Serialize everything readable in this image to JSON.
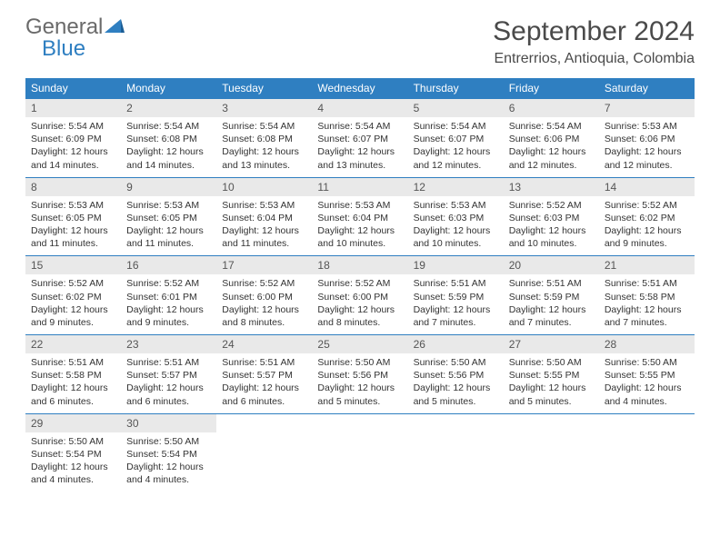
{
  "logo": {
    "general": "General",
    "blue": "Blue"
  },
  "title": "September 2024",
  "location": "Entrerrios, Antioquia, Colombia",
  "colors": {
    "header_bg": "#2f7fc1",
    "header_text": "#ffffff",
    "daynum_bg": "#e9e9e9",
    "border": "#2f7fc1",
    "logo_gray": "#6a6a6a",
    "logo_blue": "#2f7fc1"
  },
  "day_headers": [
    "Sunday",
    "Monday",
    "Tuesday",
    "Wednesday",
    "Thursday",
    "Friday",
    "Saturday"
  ],
  "weeks": [
    [
      {
        "n": "1",
        "sr": "Sunrise: 5:54 AM",
        "ss": "Sunset: 6:09 PM",
        "dl1": "Daylight: 12 hours",
        "dl2": "and 14 minutes."
      },
      {
        "n": "2",
        "sr": "Sunrise: 5:54 AM",
        "ss": "Sunset: 6:08 PM",
        "dl1": "Daylight: 12 hours",
        "dl2": "and 14 minutes."
      },
      {
        "n": "3",
        "sr": "Sunrise: 5:54 AM",
        "ss": "Sunset: 6:08 PM",
        "dl1": "Daylight: 12 hours",
        "dl2": "and 13 minutes."
      },
      {
        "n": "4",
        "sr": "Sunrise: 5:54 AM",
        "ss": "Sunset: 6:07 PM",
        "dl1": "Daylight: 12 hours",
        "dl2": "and 13 minutes."
      },
      {
        "n": "5",
        "sr": "Sunrise: 5:54 AM",
        "ss": "Sunset: 6:07 PM",
        "dl1": "Daylight: 12 hours",
        "dl2": "and 12 minutes."
      },
      {
        "n": "6",
        "sr": "Sunrise: 5:54 AM",
        "ss": "Sunset: 6:06 PM",
        "dl1": "Daylight: 12 hours",
        "dl2": "and 12 minutes."
      },
      {
        "n": "7",
        "sr": "Sunrise: 5:53 AM",
        "ss": "Sunset: 6:06 PM",
        "dl1": "Daylight: 12 hours",
        "dl2": "and 12 minutes."
      }
    ],
    [
      {
        "n": "8",
        "sr": "Sunrise: 5:53 AM",
        "ss": "Sunset: 6:05 PM",
        "dl1": "Daylight: 12 hours",
        "dl2": "and 11 minutes."
      },
      {
        "n": "9",
        "sr": "Sunrise: 5:53 AM",
        "ss": "Sunset: 6:05 PM",
        "dl1": "Daylight: 12 hours",
        "dl2": "and 11 minutes."
      },
      {
        "n": "10",
        "sr": "Sunrise: 5:53 AM",
        "ss": "Sunset: 6:04 PM",
        "dl1": "Daylight: 12 hours",
        "dl2": "and 11 minutes."
      },
      {
        "n": "11",
        "sr": "Sunrise: 5:53 AM",
        "ss": "Sunset: 6:04 PM",
        "dl1": "Daylight: 12 hours",
        "dl2": "and 10 minutes."
      },
      {
        "n": "12",
        "sr": "Sunrise: 5:53 AM",
        "ss": "Sunset: 6:03 PM",
        "dl1": "Daylight: 12 hours",
        "dl2": "and 10 minutes."
      },
      {
        "n": "13",
        "sr": "Sunrise: 5:52 AM",
        "ss": "Sunset: 6:03 PM",
        "dl1": "Daylight: 12 hours",
        "dl2": "and 10 minutes."
      },
      {
        "n": "14",
        "sr": "Sunrise: 5:52 AM",
        "ss": "Sunset: 6:02 PM",
        "dl1": "Daylight: 12 hours",
        "dl2": "and 9 minutes."
      }
    ],
    [
      {
        "n": "15",
        "sr": "Sunrise: 5:52 AM",
        "ss": "Sunset: 6:02 PM",
        "dl1": "Daylight: 12 hours",
        "dl2": "and 9 minutes."
      },
      {
        "n": "16",
        "sr": "Sunrise: 5:52 AM",
        "ss": "Sunset: 6:01 PM",
        "dl1": "Daylight: 12 hours",
        "dl2": "and 9 minutes."
      },
      {
        "n": "17",
        "sr": "Sunrise: 5:52 AM",
        "ss": "Sunset: 6:00 PM",
        "dl1": "Daylight: 12 hours",
        "dl2": "and 8 minutes."
      },
      {
        "n": "18",
        "sr": "Sunrise: 5:52 AM",
        "ss": "Sunset: 6:00 PM",
        "dl1": "Daylight: 12 hours",
        "dl2": "and 8 minutes."
      },
      {
        "n": "19",
        "sr": "Sunrise: 5:51 AM",
        "ss": "Sunset: 5:59 PM",
        "dl1": "Daylight: 12 hours",
        "dl2": "and 7 minutes."
      },
      {
        "n": "20",
        "sr": "Sunrise: 5:51 AM",
        "ss": "Sunset: 5:59 PM",
        "dl1": "Daylight: 12 hours",
        "dl2": "and 7 minutes."
      },
      {
        "n": "21",
        "sr": "Sunrise: 5:51 AM",
        "ss": "Sunset: 5:58 PM",
        "dl1": "Daylight: 12 hours",
        "dl2": "and 7 minutes."
      }
    ],
    [
      {
        "n": "22",
        "sr": "Sunrise: 5:51 AM",
        "ss": "Sunset: 5:58 PM",
        "dl1": "Daylight: 12 hours",
        "dl2": "and 6 minutes."
      },
      {
        "n": "23",
        "sr": "Sunrise: 5:51 AM",
        "ss": "Sunset: 5:57 PM",
        "dl1": "Daylight: 12 hours",
        "dl2": "and 6 minutes."
      },
      {
        "n": "24",
        "sr": "Sunrise: 5:51 AM",
        "ss": "Sunset: 5:57 PM",
        "dl1": "Daylight: 12 hours",
        "dl2": "and 6 minutes."
      },
      {
        "n": "25",
        "sr": "Sunrise: 5:50 AM",
        "ss": "Sunset: 5:56 PM",
        "dl1": "Daylight: 12 hours",
        "dl2": "and 5 minutes."
      },
      {
        "n": "26",
        "sr": "Sunrise: 5:50 AM",
        "ss": "Sunset: 5:56 PM",
        "dl1": "Daylight: 12 hours",
        "dl2": "and 5 minutes."
      },
      {
        "n": "27",
        "sr": "Sunrise: 5:50 AM",
        "ss": "Sunset: 5:55 PM",
        "dl1": "Daylight: 12 hours",
        "dl2": "and 5 minutes."
      },
      {
        "n": "28",
        "sr": "Sunrise: 5:50 AM",
        "ss": "Sunset: 5:55 PM",
        "dl1": "Daylight: 12 hours",
        "dl2": "and 4 minutes."
      }
    ],
    [
      {
        "n": "29",
        "sr": "Sunrise: 5:50 AM",
        "ss": "Sunset: 5:54 PM",
        "dl1": "Daylight: 12 hours",
        "dl2": "and 4 minutes."
      },
      {
        "n": "30",
        "sr": "Sunrise: 5:50 AM",
        "ss": "Sunset: 5:54 PM",
        "dl1": "Daylight: 12 hours",
        "dl2": "and 4 minutes."
      },
      {
        "empty": true
      },
      {
        "empty": true
      },
      {
        "empty": true
      },
      {
        "empty": true
      },
      {
        "empty": true
      }
    ]
  ]
}
